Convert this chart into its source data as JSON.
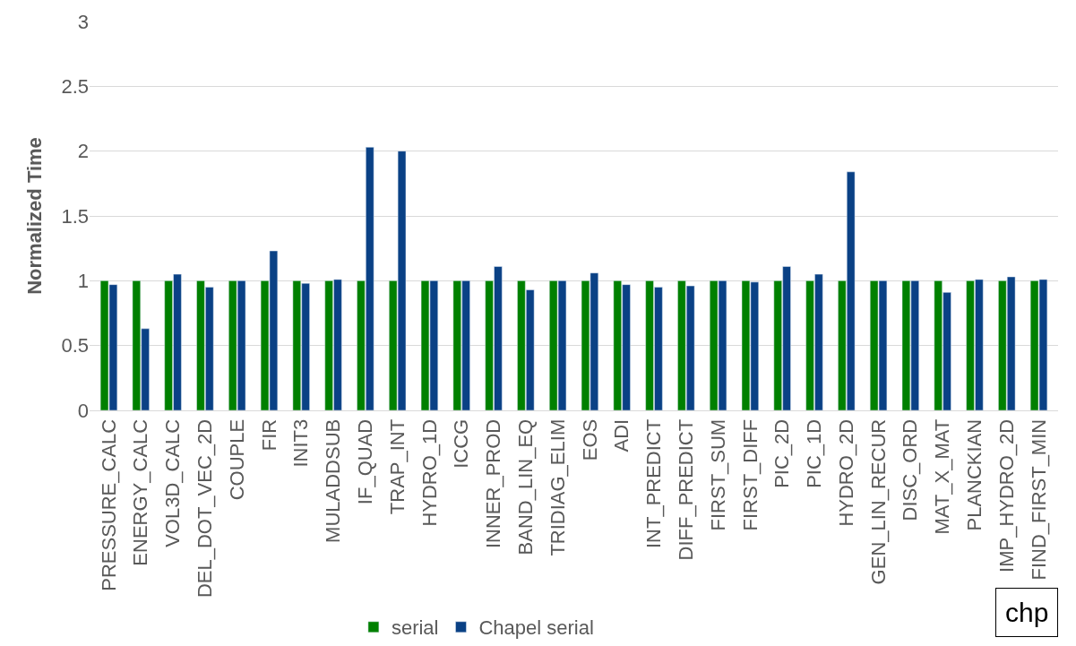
{
  "chart_data": {
    "type": "bar",
    "ylabel": "Normalized Time",
    "categories": [
      "PRESSURE_CALC",
      "ENERGY_CALC",
      "VOL3D_CALC",
      "DEL_DOT_VEC_2D",
      "COUPLE",
      "FIR",
      "INIT3",
      "MULADDSUB",
      "IF_QUAD",
      "TRAP_INT",
      "HYDRO_1D",
      "ICCG",
      "INNER_PROD",
      "BAND_LIN_EQ",
      "TRIDIAG_ELIM",
      "EOS",
      "ADI",
      "INT_PREDICT",
      "DIFF_PREDICT",
      "FIRST_SUM",
      "FIRST_DIFF",
      "PIC_2D",
      "PIC_1D",
      "HYDRO_2D",
      "GEN_LIN_RECUR",
      "DISC_ORD",
      "MAT_X_MAT",
      "PLANCKIAN",
      "IMP_HYDRO_2D",
      "FIND_FIRST_MIN"
    ],
    "series": [
      {
        "name": "serial",
        "color": "#008000",
        "values": [
          1,
          1,
          1,
          1,
          1,
          1,
          1,
          1,
          1,
          1,
          1,
          1,
          1,
          1,
          1,
          1,
          1,
          1,
          1,
          1,
          1,
          1,
          1,
          1,
          1,
          1,
          1,
          1,
          1,
          1
        ]
      },
      {
        "name": "Chapel serial",
        "color": "#0a4185",
        "values": [
          0.97,
          0.63,
          1.05,
          0.95,
          1.0,
          1.23,
          0.98,
          1.01,
          2.03,
          2.0,
          1.0,
          1.0,
          1.11,
          0.93,
          1.0,
          1.06,
          0.97,
          0.95,
          0.96,
          1.0,
          0.99,
          1.11,
          1.05,
          1.84,
          1.0,
          1.0,
          0.91,
          1.01,
          1.03,
          1.01
        ]
      }
    ],
    "ylim": [
      0,
      3
    ],
    "yticks": [
      0,
      0.5,
      1,
      1.5,
      2,
      2.5,
      3
    ],
    "grid": "y",
    "legend": "bottom",
    "annotations": [
      "chp"
    ]
  }
}
